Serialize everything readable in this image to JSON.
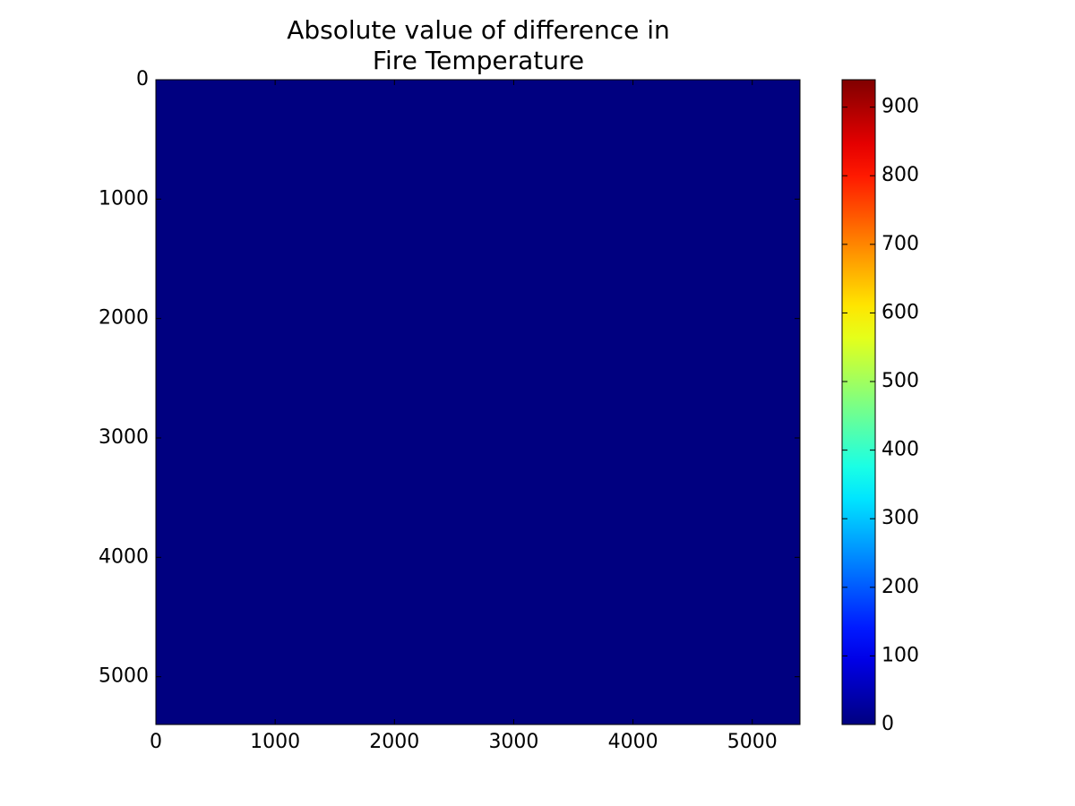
{
  "chart_data": {
    "type": "heatmap",
    "title": [
      "Absolute value of difference in",
      "Fire Temperature"
    ],
    "values": [
      [
        0
      ]
    ],
    "colormap": "jet",
    "xlim": [
      0,
      5400
    ],
    "xticks": [
      0,
      1000,
      2000,
      3000,
      4000,
      5000
    ],
    "ylim": [
      5400,
      0
    ],
    "yticks": [
      0,
      1000,
      2000,
      3000,
      4000,
      5000
    ],
    "clim": [
      0,
      940
    ],
    "cticks": [
      0,
      100,
      200,
      300,
      400,
      500,
      600,
      700,
      800,
      900
    ]
  }
}
